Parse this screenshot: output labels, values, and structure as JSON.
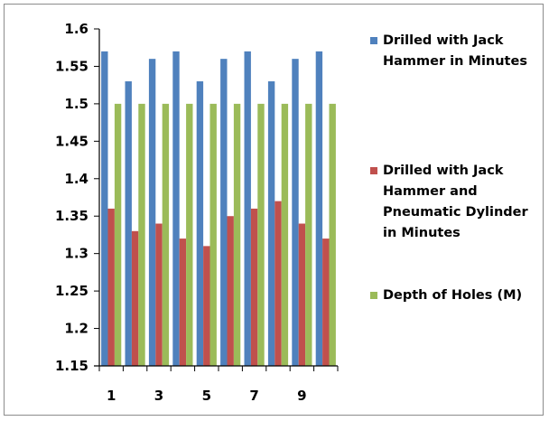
{
  "chart_data": {
    "type": "bar",
    "categories": [
      "1",
      "2",
      "3",
      "4",
      "5",
      "6",
      "7",
      "8",
      "9",
      "10"
    ],
    "x_tick_labels": [
      "1",
      "",
      "3",
      "",
      "5",
      "",
      "7",
      "",
      "9",
      ""
    ],
    "series": [
      {
        "name": "Drilled with Jack Hammer in Minutes",
        "color": "#4f81bd",
        "values": [
          1.57,
          1.53,
          1.56,
          1.57,
          1.53,
          1.56,
          1.57,
          1.53,
          1.56,
          1.57
        ]
      },
      {
        "name": "Drilled with Jack Hammer and Pneumatic Dylinder in Minutes",
        "color": "#c0504d",
        "values": [
          1.36,
          1.33,
          1.34,
          1.32,
          1.31,
          1.35,
          1.36,
          1.37,
          1.34,
          1.32
        ]
      },
      {
        "name": "Depth of Holes (M)",
        "color": "#9bbb59",
        "values": [
          1.5,
          1.5,
          1.5,
          1.5,
          1.5,
          1.5,
          1.5,
          1.5,
          1.5,
          1.5
        ]
      }
    ],
    "y_ticks": [
      "1.15",
      "1.2",
      "1.25",
      "1.3",
      "1.35",
      "1.4",
      "1.45",
      "1.5",
      "1.55",
      "1.6"
    ],
    "ylim": [
      1.15,
      1.6
    ],
    "grid": false,
    "legend_position": "right"
  }
}
